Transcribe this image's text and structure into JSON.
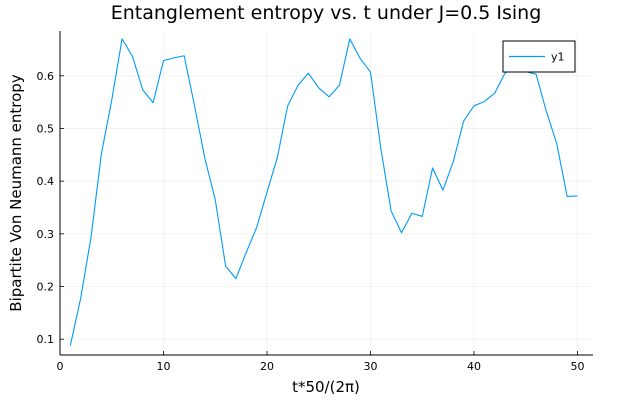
{
  "chart_data": {
    "type": "line",
    "title": "Entanglement entropy vs. t under J=0.5 Ising",
    "xlabel": "t*50/(2π)",
    "ylabel": "Bipartite Von Neumann entropy",
    "xlim": [
      0,
      51.5
    ],
    "ylim": [
      0.07,
      0.685
    ],
    "xticks": [
      0,
      10,
      20,
      30,
      40,
      50
    ],
    "yticks": [
      0.1,
      0.2,
      0.3,
      0.4,
      0.5,
      0.6
    ],
    "grid": true,
    "legend_position": "top-right",
    "series": [
      {
        "name": "y1",
        "color": "#009AFA",
        "x": [
          1,
          2,
          3,
          4,
          5,
          6,
          7,
          8,
          9,
          10,
          11,
          12,
          13,
          14,
          15,
          16,
          17,
          18,
          19,
          20,
          21,
          22,
          23,
          24,
          25,
          26,
          27,
          28,
          29,
          30,
          31,
          32,
          33,
          34,
          35,
          36,
          37,
          38,
          39,
          40,
          41,
          42,
          43,
          44,
          45,
          46,
          47,
          48,
          49,
          50
        ],
        "y": [
          0.088,
          0.178,
          0.294,
          0.452,
          0.554,
          0.67,
          0.637,
          0.573,
          0.549,
          0.629,
          0.634,
          0.638,
          0.543,
          0.443,
          0.365,
          0.239,
          0.215,
          0.265,
          0.312,
          0.379,
          0.445,
          0.543,
          0.582,
          0.605,
          0.577,
          0.56,
          0.582,
          0.67,
          0.633,
          0.607,
          0.462,
          0.343,
          0.302,
          0.339,
          0.333,
          0.425,
          0.383,
          0.437,
          0.514,
          0.543,
          0.551,
          0.567,
          0.605,
          0.617,
          0.608,
          0.603,
          0.532,
          0.471,
          0.371,
          0.372
        ]
      }
    ]
  }
}
